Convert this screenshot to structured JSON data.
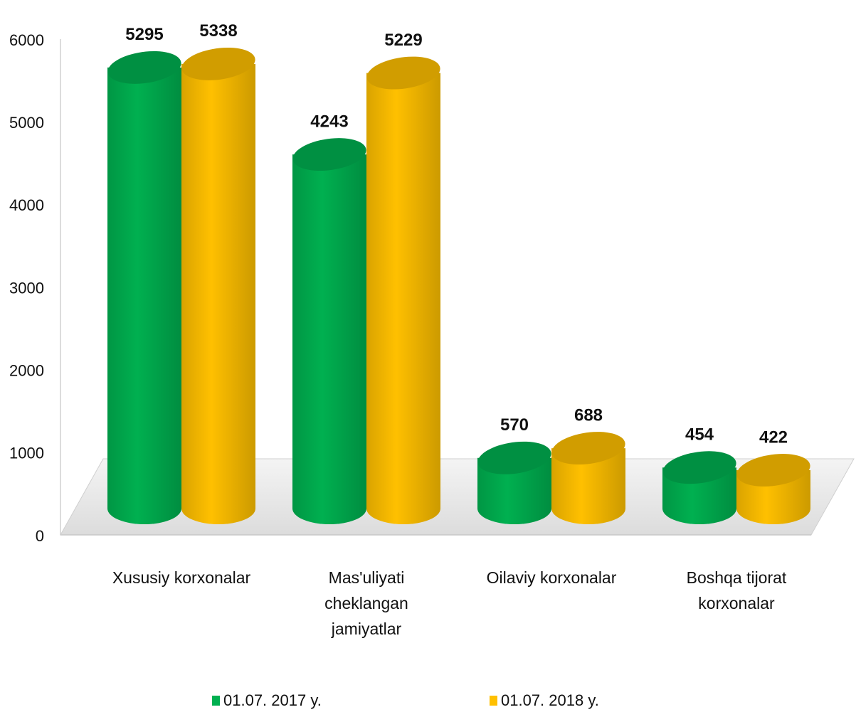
{
  "chart_data": {
    "type": "bar3d",
    "categories": [
      "Xususiy korxonalar",
      "Mas'uliyati cheklangan jamiyatlar",
      "Oilaviy korxonalar",
      "Boshqa tijorat korxonalar"
    ],
    "series": [
      {
        "name": "01.07. 2017 y.",
        "color": "#00b050",
        "values": [
          5295,
          4243,
          570,
          454
        ]
      },
      {
        "name": "01.07. 2018 y.",
        "color": "#ffc000",
        "values": [
          5338,
          5229,
          688,
          422
        ]
      }
    ],
    "ylim": [
      0,
      6000
    ],
    "yticks": [
      0,
      1000,
      2000,
      3000,
      4000,
      5000,
      6000
    ],
    "legend": "bottom"
  }
}
